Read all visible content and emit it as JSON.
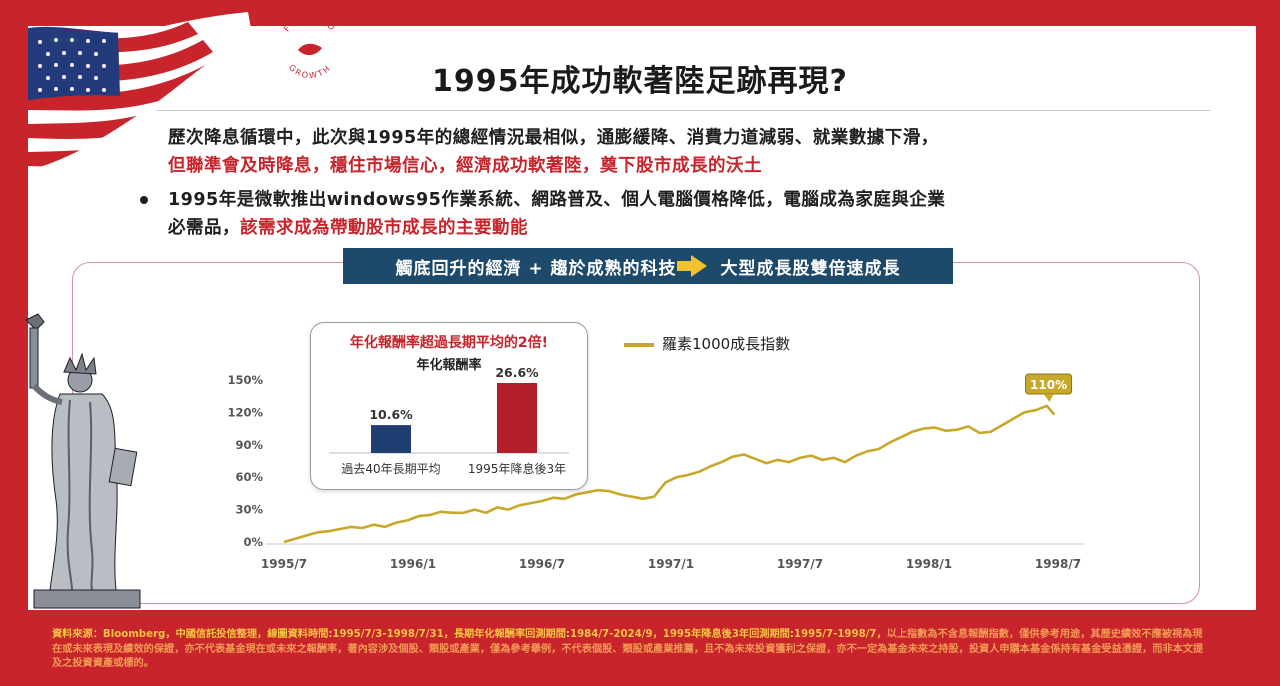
{
  "stamp": {
    "top": "FOCUSED",
    "bottom": "GROWTH"
  },
  "title": "1995年成功軟著陸足跡再現?",
  "para1": {
    "line1": "歷次降息循環中，此次與1995年的總經情況最相似，通膨緩降、消費力道減弱、就業數據下滑，",
    "line2_red": "但聯準會及時降息，穩住市場信心，經濟成功軟著陸，奠下股市成長的沃土"
  },
  "para2": {
    "line1": "1995年是微軟推出windows95作業系統、網路普及、個人電腦價格降低，電腦成為家庭與企業",
    "line2_black": "必需品，",
    "line2_red": "該需求成為帶動股市成長的主要動能"
  },
  "banner": {
    "left": "觸底回升的經濟 + 趨於成熟的科技",
    "right": "大型成長股雙倍速成長"
  },
  "colors": {
    "brand_red": "#c8242b",
    "navy": "#1d4a6b",
    "gold": "#c8a82a",
    "bar_navy": "#1f3f73",
    "bar_red": "#b3202a"
  },
  "chart_data": [
    {
      "type": "line",
      "series": [
        {
          "name": "羅素1000成長指數",
          "color": "#c8a82a"
        }
      ],
      "x_tick_labels": [
        "1995/7",
        "1996/1",
        "1996/7",
        "1997/1",
        "1997/7",
        "1998/1",
        "1998/7"
      ],
      "y_tick_labels": [
        "0%",
        "30%",
        "60%",
        "90%",
        "120%",
        "150%"
      ],
      "ylim": [
        0,
        150
      ],
      "points": [
        [
          0,
          0
        ],
        [
          0.6,
          3
        ],
        [
          1.2,
          6
        ],
        [
          1.8,
          9
        ],
        [
          2.4,
          10
        ],
        [
          3,
          12
        ],
        [
          3.6,
          14
        ],
        [
          4.2,
          13
        ],
        [
          4.8,
          16
        ],
        [
          5.4,
          14
        ],
        [
          6,
          18
        ],
        [
          6.6,
          20
        ],
        [
          7.2,
          24
        ],
        [
          7.8,
          25
        ],
        [
          8.4,
          28
        ],
        [
          9,
          27
        ],
        [
          9.6,
          27
        ],
        [
          10.2,
          30
        ],
        [
          10.8,
          27
        ],
        [
          11.4,
          32
        ],
        [
          12,
          30
        ],
        [
          12.6,
          34
        ],
        [
          13.2,
          36
        ],
        [
          13.8,
          38
        ],
        [
          14.4,
          41
        ],
        [
          15,
          40
        ],
        [
          15.6,
          44
        ],
        [
          16.2,
          46
        ],
        [
          16.8,
          48
        ],
        [
          17.4,
          47
        ],
        [
          18,
          44
        ],
        [
          18.6,
          42
        ],
        [
          19.2,
          40
        ],
        [
          19.8,
          42
        ],
        [
          20.4,
          55
        ],
        [
          21,
          60
        ],
        [
          21.6,
          62
        ],
        [
          22.2,
          65
        ],
        [
          22.8,
          70
        ],
        [
          23.4,
          74
        ],
        [
          24,
          79
        ],
        [
          24.6,
          81
        ],
        [
          25.2,
          77
        ],
        [
          25.8,
          73
        ],
        [
          26.4,
          76
        ],
        [
          27,
          74
        ],
        [
          27.6,
          78
        ],
        [
          28.2,
          80
        ],
        [
          28.8,
          76
        ],
        [
          29.4,
          78
        ],
        [
          30,
          74
        ],
        [
          30.6,
          80
        ],
        [
          31.2,
          84
        ],
        [
          31.8,
          86
        ],
        [
          32.4,
          92
        ],
        [
          33,
          97
        ],
        [
          33.6,
          102
        ],
        [
          34.2,
          105
        ],
        [
          34.8,
          106
        ],
        [
          35.4,
          103
        ],
        [
          36,
          104
        ],
        [
          36.6,
          107
        ],
        [
          37.2,
          101
        ],
        [
          37.8,
          102
        ],
        [
          38.4,
          108
        ],
        [
          39,
          114
        ],
        [
          39.6,
          120
        ],
        [
          40.2,
          122
        ],
        [
          40.8,
          126
        ],
        [
          41.2,
          118
        ]
      ],
      "annotation": "110%"
    },
    {
      "type": "bar",
      "title": "年化報酬率超過長期平均的2倍!",
      "ylabel": "年化報酬率",
      "categories": [
        "過去40年長期平均",
        "1995年降息後3年"
      ],
      "values": [
        10.6,
        26.6
      ],
      "value_labels": [
        "10.6%",
        "26.6%"
      ],
      "colors": [
        "#1f3f73",
        "#b3202a"
      ]
    }
  ],
  "footer": {
    "line_yellow": "資料來源：Bloomberg，中國信託投信整理，線圖資料時間:1995/7/3-1998/7/31，長期年化報酬率回測期間:1984/7-2024/9，1995年降息後3年回測期間:1995/7-1998/7，",
    "line_orange": "以上指數為不含息報酬指數，僅供參考用途，其歷史績效不應被視為現在或未來表現及績效的保證，亦不代表基金現在或未來之報酬率，著內容涉及個股、類股或產業，僅為參考舉例，不代表個股、類股或產業推薦，且不為未來投資獲利之保證，亦不一定為基金未來之持股，投資人申購本基金係持有基金受益憑證，而非本文提及之投資資產或標的。"
  }
}
